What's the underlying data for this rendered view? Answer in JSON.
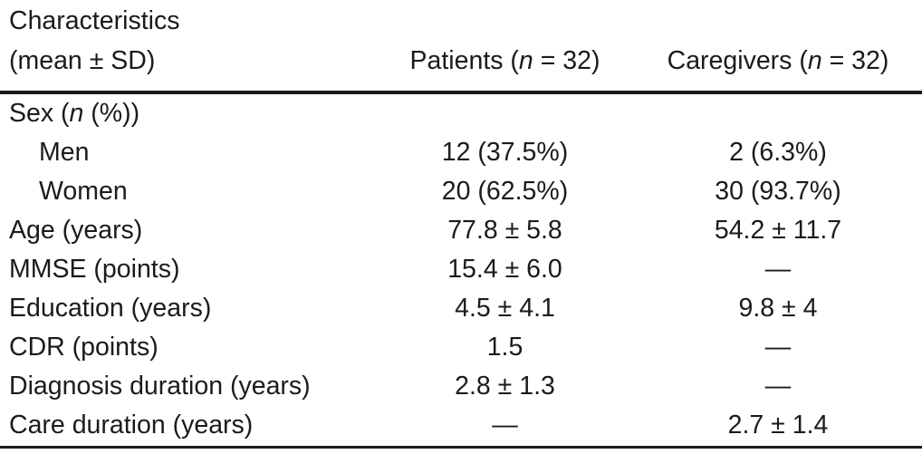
{
  "table": {
    "header": {
      "col0_line1": "Characteristics",
      "col0_line2": "(mean ± SD)",
      "col1": {
        "pre": "Patients (",
        "it": "n",
        "post": " = 32)"
      },
      "col2": {
        "pre": "Caregivers (",
        "it": "n",
        "post": " = 32)"
      }
    },
    "rows": [
      {
        "label": {
          "pre": "Sex (",
          "it": "n",
          "post": " (%))"
        },
        "patients": "",
        "caregivers": ""
      },
      {
        "label": {
          "pre": "Men"
        },
        "patients": "12 (37.5%)",
        "caregivers": "2 (6.3%)"
      },
      {
        "label": {
          "pre": "Women"
        },
        "patients": "20 (62.5%)",
        "caregivers": "30 (93.7%)"
      },
      {
        "label": {
          "pre": "Age (years)"
        },
        "patients": "77.8 ± 5.8",
        "caregivers": "54.2 ± 11.7"
      },
      {
        "label": {
          "pre": "MMSE (points)"
        },
        "patients": "15.4 ± 6.0",
        "caregivers": "—"
      },
      {
        "label": {
          "pre": "Education (years)"
        },
        "patients": "4.5 ± 4.1",
        "caregivers": "9.8 ± 4"
      },
      {
        "label": {
          "pre": "CDR (points)"
        },
        "patients": "1.5",
        "caregivers": "—"
      },
      {
        "label": {
          "pre": "Diagnosis duration (years)"
        },
        "patients": "2.8 ± 1.3",
        "caregivers": "—"
      },
      {
        "label": {
          "pre": "Care duration (years)"
        },
        "patients": "—",
        "caregivers": "2.7 ± 1.4"
      }
    ],
    "text_color": "#1b1b1b",
    "background_color": "#ffffff"
  }
}
